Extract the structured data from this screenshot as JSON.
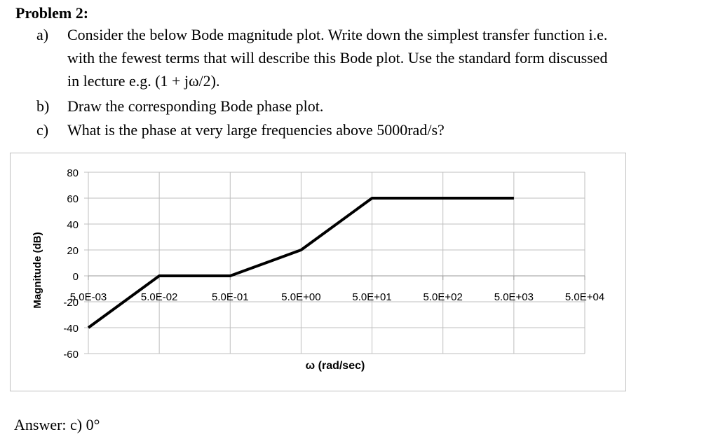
{
  "problem": {
    "title": "Problem 2:",
    "parts": [
      {
        "label": "a)",
        "lines": [
          "Consider the below Bode magnitude plot. Write down the simplest transfer function i.e.",
          "with the fewest terms that will describe this Bode plot. Use the standard form discussed",
          "in lecture e.g. (1 + jω/2)."
        ]
      },
      {
        "label": "b)",
        "lines": [
          "Draw the corresponding Bode phase plot."
        ]
      },
      {
        "label": "c)",
        "lines": [
          "What is the phase at very large frequencies above 5000rad/s?"
        ]
      }
    ]
  },
  "answer": "Answer: c) 0°",
  "chart_data": {
    "type": "line",
    "xlabel": "ω (rad/sec)",
    "ylabel": "Magnitude (dB)",
    "x_scale": "log",
    "x_ticks": [
      "5.0E-03",
      "5.0E-02",
      "5.0E-01",
      "5.0E+00",
      "5.0E+01",
      "5.0E+02",
      "5.0E+03",
      "5.0E+04"
    ],
    "x_tick_values": [
      0.005,
      0.05,
      0.5,
      5,
      50,
      500,
      5000,
      50000
    ],
    "y_ticks": [
      "80",
      "60",
      "40",
      "20",
      "0",
      "-20",
      "-40",
      "-60"
    ],
    "y_tick_values": [
      80,
      60,
      40,
      20,
      0,
      -20,
      -40,
      -60
    ],
    "ylim": [
      -60,
      80
    ],
    "xlim": [
      0.005,
      50000
    ],
    "grid": true,
    "series": [
      {
        "x": [
          0.005,
          0.05,
          0.5,
          5,
          50,
          5000
        ],
        "y": [
          -40,
          0,
          0,
          20,
          60,
          60
        ]
      }
    ],
    "line_color": "#000000",
    "grid_color": "#bfbfbf"
  }
}
